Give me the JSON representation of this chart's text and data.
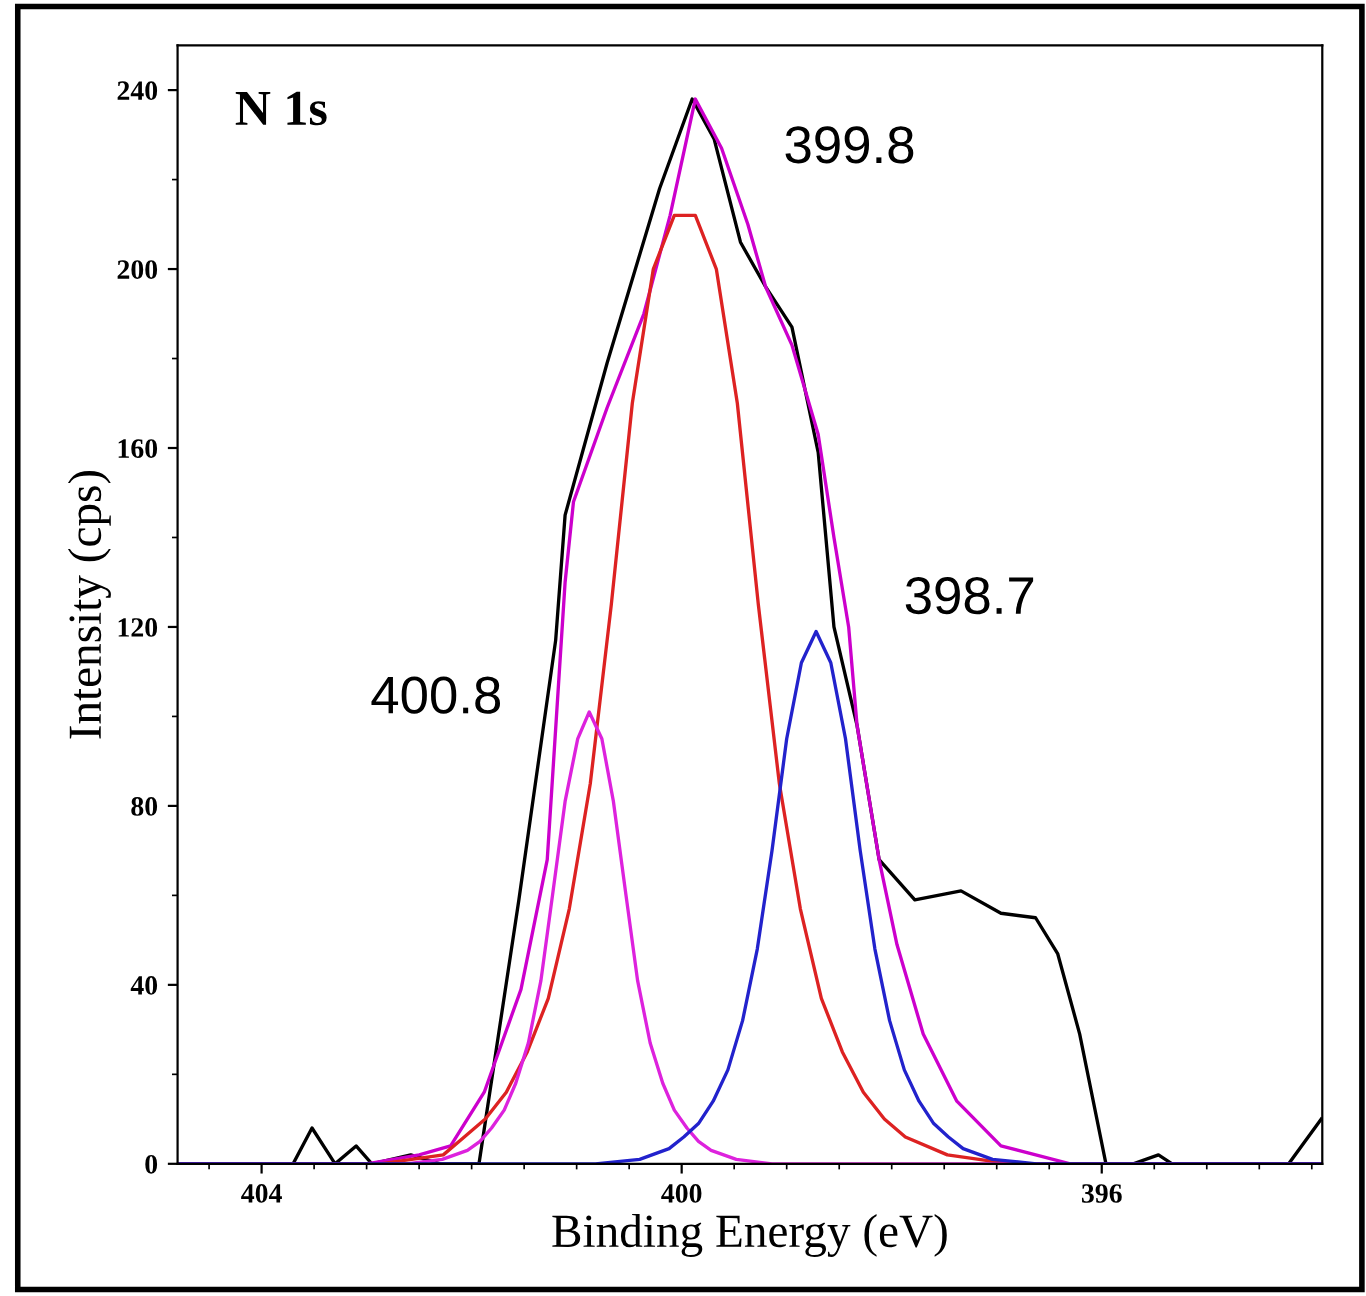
{
  "chart_data": {
    "type": "line",
    "title": "N 1s",
    "xlabel": "Binding Energy (eV)",
    "ylabel": "Intensity (cps)",
    "xlim": [
      404.8,
      393.9
    ],
    "ylim": [
      0,
      250
    ],
    "xticks": [
      404,
      400,
      396
    ],
    "yticks": [
      0,
      40,
      80,
      120,
      160,
      200,
      240
    ],
    "grid": false,
    "legend": false,
    "marker": "none",
    "line_style": "solid",
    "series": [
      {
        "color": "#000000",
        "x": [
          404.8,
          404.3,
          403.9,
          403.7,
          403.52,
          403.3,
          403.1,
          402.95,
          402.58,
          402.3,
          401.93,
          401.55,
          401.2,
          401.11,
          400.71,
          400.21,
          399.9,
          399.69,
          399.44,
          399.2,
          398.95,
          398.7,
          398.55,
          398.33,
          398.12,
          397.78,
          397.34,
          396.96,
          396.63,
          396.42,
          396.21,
          395.96,
          395.7,
          395.46,
          395.33,
          394.22,
          393.91
        ],
        "values": [
          0,
          0,
          0,
          0,
          8,
          0,
          4,
          0,
          2,
          0,
          0,
          59,
          117,
          145,
          179,
          218,
          238,
          229,
          206,
          196,
          187,
          159,
          120,
          98,
          68,
          59,
          61,
          56,
          55,
          47,
          29,
          0,
          0,
          2,
          0,
          0,
          10
        ]
      },
      {
        "color": "#cc00cc",
        "x": [
          404.8,
          403.0,
          402.5,
          402.2,
          401.88,
          401.53,
          401.28,
          401.11,
          401.03,
          400.71,
          400.36,
          400.11,
          399.87,
          399.62,
          399.37,
          399.2,
          398.95,
          398.7,
          398.55,
          398.41,
          398.33,
          398.12,
          397.95,
          397.7,
          397.38,
          396.96,
          396.3,
          393.9
        ],
        "values": [
          0,
          0,
          2,
          4,
          16,
          39,
          68,
          130,
          148,
          169,
          190,
          212,
          238,
          227,
          210,
          196,
          183,
          163,
          140,
          120,
          98,
          68,
          49,
          29,
          14,
          4,
          0,
          0
        ]
      },
      {
        "color": "#dd2222",
        "x": [
          404.8,
          402.87,
          402.27,
          402.07,
          401.87,
          401.67,
          401.47,
          401.27,
          401.07,
          400.87,
          400.67,
          400.47,
          400.27,
          400.07,
          399.87,
          399.67,
          399.47,
          399.27,
          399.07,
          398.87,
          398.67,
          398.47,
          398.27,
          398.07,
          397.87,
          397.47,
          396.87,
          393.9
        ],
        "values": [
          0,
          0,
          2,
          6,
          10,
          16,
          25,
          37,
          57,
          85,
          125,
          170,
          200,
          212,
          212,
          200,
          170,
          125,
          85,
          57,
          37,
          25,
          16,
          10,
          6,
          2,
          0,
          0
        ]
      },
      {
        "color": "#dd22dd",
        "x": [
          404.8,
          402.62,
          402.28,
          402.04,
          401.92,
          401.81,
          401.69,
          401.58,
          401.46,
          401.34,
          401.23,
          401.11,
          400.99,
          400.88,
          400.76,
          400.65,
          400.53,
          400.42,
          400.3,
          400.18,
          400.07,
          399.95,
          399.84,
          399.72,
          399.48,
          399.14,
          393.9
        ],
        "values": [
          0,
          0,
          1,
          3,
          5,
          8,
          12,
          18,
          27,
          41,
          60,
          81,
          95,
          101,
          95,
          81,
          60,
          41,
          27,
          18,
          12,
          8,
          5,
          3,
          1,
          0,
          0
        ]
      },
      {
        "color": "#2222cc",
        "x": [
          404.8,
          400.82,
          400.4,
          400.12,
          399.98,
          399.84,
          399.7,
          399.56,
          399.42,
          399.28,
          399.14,
          399.0,
          398.86,
          398.72,
          398.58,
          398.44,
          398.3,
          398.16,
          398.02,
          397.88,
          397.74,
          397.6,
          397.46,
          397.32,
          397.04,
          396.62,
          393.9
        ],
        "values": [
          0,
          0,
          1,
          3.4,
          6,
          9,
          14,
          21,
          32,
          48,
          70,
          95,
          112,
          119,
          112,
          95,
          70,
          48,
          32,
          21,
          14,
          9,
          6,
          3.4,
          1,
          0,
          0
        ]
      }
    ],
    "annotations": [
      "400.8",
      "399.8",
      "398.7"
    ]
  }
}
